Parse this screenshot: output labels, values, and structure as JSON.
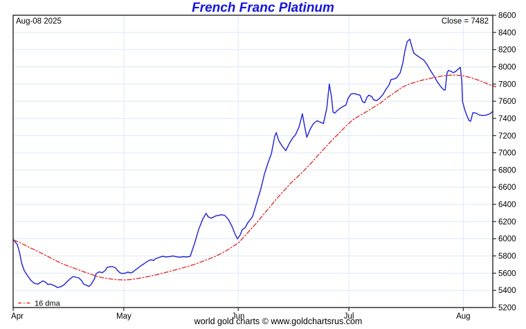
{
  "header": {
    "title": "French Franc Platinum",
    "date_label": "Aug-08  2025",
    "close_label": "Close = 7482"
  },
  "legend": {
    "label": "16 dma"
  },
  "footer": {
    "caption": "world gold charts © www.goldchartsrus.com"
  },
  "colors": {
    "title_blue": "#1414dd",
    "price_blue": "#2b2bd0",
    "dma_red": "#e03030",
    "grid_blue": "#dce8f8",
    "axis_black": "#000000"
  },
  "chart_data": {
    "type": "line",
    "title": "French Franc Platinum",
    "x_unit": "days since Apr-01-2025",
    "xlim": [
      0,
      130
    ],
    "ylim": [
      5200,
      8600
    ],
    "y_tick_step": 200,
    "grid": true,
    "legend_position": "bottom-left",
    "close": 7482,
    "x_ticks": {
      "days": [
        0,
        30,
        61,
        91,
        122
      ],
      "labels": [
        "Apr",
        "May",
        "Jun",
        "Jul",
        "Aug"
      ]
    },
    "series": [
      {
        "name": "price",
        "style": "solid",
        "color": "#2b2bd0",
        "points": [
          [
            0,
            5990
          ],
          [
            1.1,
            5935
          ],
          [
            1.7,
            5845
          ],
          [
            2.3,
            5715
          ],
          [
            3,
            5630
          ],
          [
            3.9,
            5570
          ],
          [
            4.9,
            5512
          ],
          [
            5.8,
            5480
          ],
          [
            6.8,
            5473
          ],
          [
            7.3,
            5490
          ],
          [
            8.1,
            5510
          ],
          [
            8.8,
            5495
          ],
          [
            9.4,
            5468
          ],
          [
            10.1,
            5473
          ],
          [
            10.9,
            5458
          ],
          [
            11.4,
            5450
          ],
          [
            12,
            5433
          ],
          [
            12.8,
            5440
          ],
          [
            13.7,
            5460
          ],
          [
            14.6,
            5500
          ],
          [
            15.6,
            5540
          ],
          [
            16.3,
            5560
          ],
          [
            17.1,
            5552
          ],
          [
            17.8,
            5545
          ],
          [
            18.6,
            5510
          ],
          [
            19.1,
            5473
          ],
          [
            19.9,
            5458
          ],
          [
            20.6,
            5446
          ],
          [
            21.2,
            5473
          ],
          [
            22,
            5530
          ],
          [
            22.5,
            5594
          ],
          [
            23.3,
            5615
          ],
          [
            24.2,
            5605
          ],
          [
            25,
            5634
          ],
          [
            25.5,
            5667
          ],
          [
            26.3,
            5675
          ],
          [
            27,
            5675
          ],
          [
            27.8,
            5660
          ],
          [
            28.3,
            5630
          ],
          [
            29.1,
            5600
          ],
          [
            29.8,
            5596
          ],
          [
            30.6,
            5602
          ],
          [
            31.1,
            5613
          ],
          [
            31.7,
            5602
          ],
          [
            32.5,
            5613
          ],
          [
            33,
            5634
          ],
          [
            33.8,
            5658
          ],
          [
            34.5,
            5683
          ],
          [
            35.5,
            5710
          ],
          [
            36.4,
            5737
          ],
          [
            37.3,
            5756
          ],
          [
            38.1,
            5748
          ],
          [
            38.6,
            5769
          ],
          [
            39.6,
            5783
          ],
          [
            40.5,
            5796
          ],
          [
            41.5,
            5788
          ],
          [
            42.4,
            5792
          ],
          [
            43.3,
            5800
          ],
          [
            44.3,
            5790
          ],
          [
            45.2,
            5785
          ],
          [
            46.2,
            5792
          ],
          [
            47.1,
            5788
          ],
          [
            48,
            5796
          ],
          [
            49.2,
            5950
          ],
          [
            50.3,
            6110
          ],
          [
            51.4,
            6230
          ],
          [
            52.3,
            6296
          ],
          [
            52.9,
            6253
          ],
          [
            53.7,
            6240
          ],
          [
            55,
            6267
          ],
          [
            56.5,
            6280
          ],
          [
            57.4,
            6270
          ],
          [
            58.3,
            6227
          ],
          [
            59.3,
            6146
          ],
          [
            60.2,
            6050
          ],
          [
            60.8,
            5999
          ],
          [
            61.5,
            6040
          ],
          [
            62.1,
            6106
          ],
          [
            62.9,
            6130
          ],
          [
            63.6,
            6186
          ],
          [
            64.4,
            6230
          ],
          [
            64.9,
            6260
          ],
          [
            65.9,
            6402
          ],
          [
            67.2,
            6590
          ],
          [
            68.1,
            6751
          ],
          [
            69,
            6872
          ],
          [
            70,
            6993
          ],
          [
            70.9,
            7194
          ],
          [
            71.3,
            7234
          ],
          [
            72,
            7140
          ],
          [
            73,
            7073
          ],
          [
            73.9,
            7025
          ],
          [
            74.9,
            7113
          ],
          [
            75.8,
            7175
          ],
          [
            76.5,
            7207
          ],
          [
            77.5,
            7301
          ],
          [
            78.4,
            7454
          ],
          [
            79,
            7310
          ],
          [
            79.6,
            7180
          ],
          [
            80.5,
            7274
          ],
          [
            81.4,
            7341
          ],
          [
            82.4,
            7373
          ],
          [
            83.3,
            7355
          ],
          [
            84.1,
            7341
          ],
          [
            85,
            7515
          ],
          [
            85.7,
            7800
          ],
          [
            86.3,
            7649
          ],
          [
            86.7,
            7474
          ],
          [
            87.2,
            7461
          ],
          [
            87.8,
            7490
          ],
          [
            88.4,
            7510
          ],
          [
            89.3,
            7536
          ],
          [
            90.2,
            7555
          ],
          [
            90.8,
            7635
          ],
          [
            91.6,
            7685
          ],
          [
            92.5,
            7689
          ],
          [
            93.1,
            7681
          ],
          [
            94,
            7670
          ],
          [
            94.7,
            7595
          ],
          [
            95.3,
            7582
          ],
          [
            95.9,
            7645
          ],
          [
            96.4,
            7670
          ],
          [
            97.2,
            7654
          ],
          [
            97.7,
            7616
          ],
          [
            98.5,
            7608
          ],
          [
            99.2,
            7627
          ],
          [
            100.2,
            7675
          ],
          [
            101.1,
            7740
          ],
          [
            101.9,
            7790
          ],
          [
            102.4,
            7851
          ],
          [
            103.2,
            7859
          ],
          [
            103.9,
            7870
          ],
          [
            104.9,
            7930
          ],
          [
            105.6,
            8040
          ],
          [
            106.2,
            8187
          ],
          [
            106.8,
            8294
          ],
          [
            107.5,
            8321
          ],
          [
            108.1,
            8227
          ],
          [
            108.6,
            8160
          ],
          [
            109.4,
            8133
          ],
          [
            110.3,
            8106
          ],
          [
            111.3,
            8079
          ],
          [
            112.2,
            8025
          ],
          [
            113.1,
            7958
          ],
          [
            114.1,
            7891
          ],
          [
            115,
            7824
          ],
          [
            115.9,
            7770
          ],
          [
            116.7,
            7732
          ],
          [
            117.1,
            7730
          ],
          [
            117.6,
            7931
          ],
          [
            118,
            7958
          ],
          [
            118.8,
            7945
          ],
          [
            119.3,
            7932
          ],
          [
            119.9,
            7945
          ],
          [
            120.6,
            7972
          ],
          [
            121.2,
            7994
          ],
          [
            121.6,
            7837
          ],
          [
            121.8,
            7595
          ],
          [
            122.5,
            7488
          ],
          [
            123.1,
            7421
          ],
          [
            123.6,
            7373
          ],
          [
            124,
            7367
          ],
          [
            124.6,
            7466
          ],
          [
            125.5,
            7461
          ],
          [
            126.4,
            7439
          ],
          [
            127.4,
            7434
          ],
          [
            128.3,
            7439
          ],
          [
            129.3,
            7455
          ],
          [
            130,
            7482
          ]
        ]
      },
      {
        "name": "16 dma",
        "style": "dash-dot",
        "color": "#e03030",
        "points": [
          [
            0.2,
            5985
          ],
          [
            2.1,
            5950
          ],
          [
            3.9,
            5910
          ],
          [
            5.8,
            5872
          ],
          [
            7.7,
            5832
          ],
          [
            9.6,
            5790
          ],
          [
            11.4,
            5748
          ],
          [
            13.3,
            5710
          ],
          [
            15.2,
            5678
          ],
          [
            17.1,
            5648
          ],
          [
            18.9,
            5620
          ],
          [
            20.8,
            5592
          ],
          [
            22.7,
            5562
          ],
          [
            24.6,
            5545
          ],
          [
            26.5,
            5532
          ],
          [
            28.3,
            5524
          ],
          [
            30.2,
            5521
          ],
          [
            32.1,
            5527
          ],
          [
            34,
            5539
          ],
          [
            35.8,
            5554
          ],
          [
            37.7,
            5570
          ],
          [
            39.6,
            5590
          ],
          [
            41.5,
            5610
          ],
          [
            43.3,
            5630
          ],
          [
            45.2,
            5652
          ],
          [
            47.1,
            5675
          ],
          [
            49,
            5700
          ],
          [
            50.8,
            5728
          ],
          [
            52.7,
            5758
          ],
          [
            54.6,
            5792
          ],
          [
            56.5,
            5830
          ],
          [
            58.3,
            5875
          ],
          [
            60.2,
            5928
          ],
          [
            61.2,
            5958
          ],
          [
            62.1,
            6000
          ],
          [
            63,
            6042
          ],
          [
            64,
            6090
          ],
          [
            64.9,
            6135
          ],
          [
            65.9,
            6180
          ],
          [
            66.8,
            6228
          ],
          [
            67.7,
            6275
          ],
          [
            69.6,
            6370
          ],
          [
            71.5,
            6470
          ],
          [
            73.4,
            6560
          ],
          [
            75.2,
            6645
          ],
          [
            77.1,
            6720
          ],
          [
            79,
            6800
          ],
          [
            80.9,
            6886
          ],
          [
            82.7,
            6975
          ],
          [
            84.6,
            7062
          ],
          [
            86.5,
            7150
          ],
          [
            88.4,
            7230
          ],
          [
            90.2,
            7310
          ],
          [
            92.1,
            7385
          ],
          [
            94,
            7435
          ],
          [
            95.9,
            7480
          ],
          [
            97.7,
            7530
          ],
          [
            99.6,
            7580
          ],
          [
            101.5,
            7645
          ],
          [
            103.4,
            7700
          ],
          [
            105.3,
            7760
          ],
          [
            107.1,
            7795
          ],
          [
            109,
            7822
          ],
          [
            110.9,
            7845
          ],
          [
            112.8,
            7862
          ],
          [
            114.6,
            7880
          ],
          [
            116.5,
            7895
          ],
          [
            118.4,
            7903
          ],
          [
            120.3,
            7903
          ],
          [
            122.1,
            7895
          ],
          [
            124,
            7875
          ],
          [
            125.9,
            7848
          ],
          [
            127.8,
            7815
          ],
          [
            129.6,
            7785
          ],
          [
            130.8,
            7768
          ]
        ]
      }
    ]
  }
}
